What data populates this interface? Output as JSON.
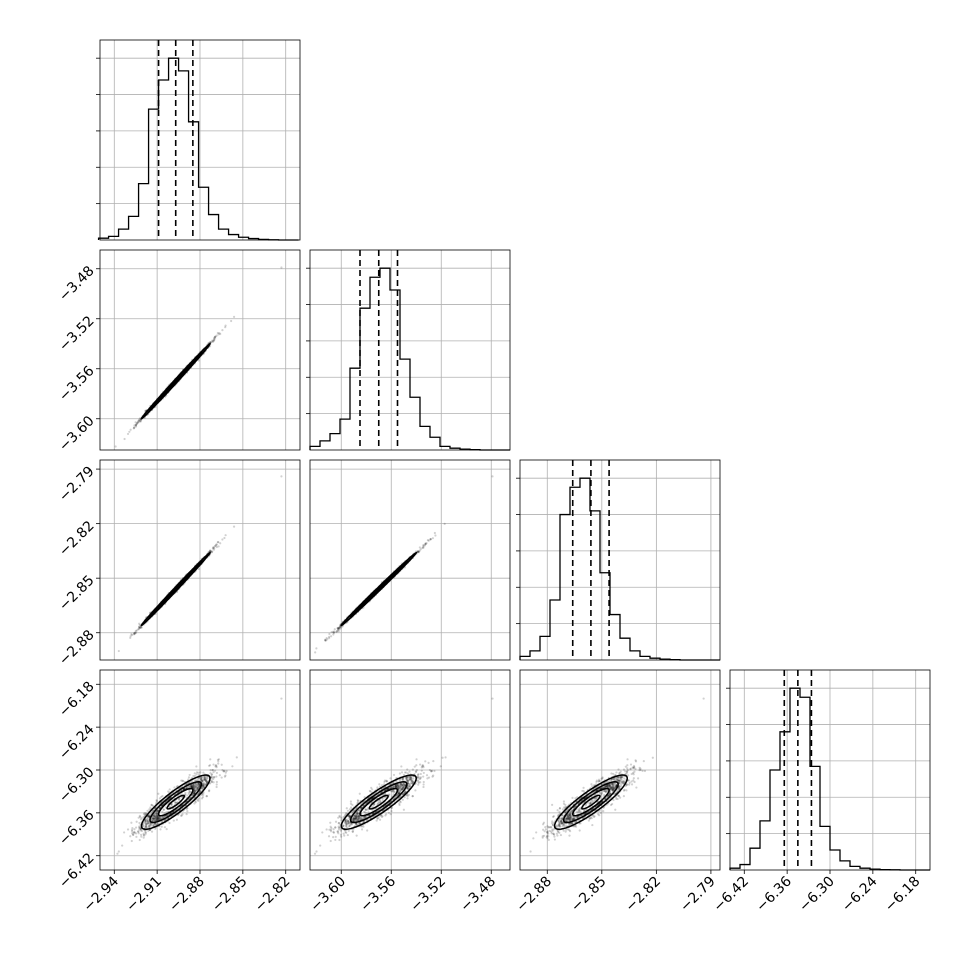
{
  "chart_data": {
    "type": "corner",
    "grid": true,
    "n_params": 4,
    "params": [
      {
        "range": [
          -2.95,
          -2.81
        ],
        "ticks": [
          -2.94,
          -2.91,
          -2.88,
          -2.85,
          -2.82
        ],
        "tick_labels": [
          "−2.94",
          "−2.91",
          "−2.88",
          "−2.85",
          "−2.82"
        ],
        "quantiles": [
          -2.909,
          -2.897,
          -2.885
        ],
        "hist_bins": [
          -2.951,
          -2.944,
          -2.937,
          -2.93,
          -2.923,
          -2.916,
          -2.909,
          -2.902,
          -2.895,
          -2.888,
          -2.881,
          -2.874,
          -2.867,
          -2.86,
          -2.853,
          -2.846,
          -2.839,
          -2.832,
          -2.825,
          -2.818,
          -2.811
        ],
        "hist_counts": [
          0.01,
          0.02,
          0.06,
          0.13,
          0.31,
          0.72,
          0.88,
          1.0,
          0.93,
          0.65,
          0.29,
          0.14,
          0.06,
          0.03,
          0.015,
          0.008,
          0.003,
          0.001,
          0,
          0
        ]
      },
      {
        "range": [
          -3.625,
          -3.465
        ],
        "ticks": [
          -3.6,
          -3.56,
          -3.52,
          -3.48
        ],
        "tick_labels": [
          "−3.60",
          "−3.56",
          "−3.52",
          "−3.48"
        ],
        "quantiles": [
          -3.585,
          -3.57,
          -3.555
        ],
        "hist_bins": [
          -3.625,
          -3.617,
          -3.609,
          -3.601,
          -3.593,
          -3.585,
          -3.577,
          -3.569,
          -3.561,
          -3.553,
          -3.545,
          -3.537,
          -3.529,
          -3.521,
          -3.513,
          -3.505,
          -3.497,
          -3.489,
          -3.481,
          -3.473,
          -3.465
        ],
        "hist_counts": [
          0.02,
          0.05,
          0.09,
          0.17,
          0.45,
          0.78,
          0.95,
          1.0,
          0.88,
          0.5,
          0.29,
          0.13,
          0.07,
          0.02,
          0.01,
          0.005,
          0.002,
          0,
          0,
          0
        ]
      },
      {
        "range": [
          -2.895,
          -2.785
        ],
        "ticks": [
          -2.88,
          -2.85,
          -2.82,
          -2.79
        ],
        "tick_labels": [
          "−2.88",
          "−2.85",
          "−2.82",
          "−2.79"
        ],
        "quantiles": [
          -2.866,
          -2.856,
          -2.846
        ],
        "hist_bins": [
          -2.895,
          -2.8895,
          -2.884,
          -2.8785,
          -2.873,
          -2.8675,
          -2.862,
          -2.8565,
          -2.851,
          -2.8455,
          -2.84,
          -2.8345,
          -2.829,
          -2.8235,
          -2.818,
          -2.8125,
          -2.807,
          -2.8015,
          -2.796,
          -2.7905,
          -2.785
        ],
        "hist_counts": [
          0.02,
          0.05,
          0.13,
          0.33,
          0.8,
          0.95,
          1.0,
          0.82,
          0.48,
          0.25,
          0.12,
          0.05,
          0.02,
          0.01,
          0.005,
          0.002,
          0,
          0,
          0,
          0
        ]
      },
      {
        "range": [
          -6.44,
          -6.16
        ],
        "ticks": [
          -6.42,
          -6.36,
          -6.3,
          -6.24,
          -6.18
        ],
        "tick_labels": [
          "−6.42",
          "−6.36",
          "−6.30",
          "−6.24",
          "−6.18"
        ],
        "quantiles": [
          -6.364,
          -6.345,
          -6.326
        ],
        "hist_bins": [
          -6.44,
          -6.426,
          -6.412,
          -6.398,
          -6.384,
          -6.37,
          -6.356,
          -6.342,
          -6.328,
          -6.314,
          -6.3,
          -6.286,
          -6.272,
          -6.258,
          -6.244,
          -6.23,
          -6.216,
          -6.202,
          -6.188,
          -6.174,
          -6.16
        ],
        "hist_counts": [
          0.01,
          0.03,
          0.12,
          0.27,
          0.55,
          0.76,
          1.0,
          0.95,
          0.57,
          0.24,
          0.11,
          0.05,
          0.02,
          0.01,
          0.005,
          0.002,
          0.001,
          0,
          0,
          0
        ]
      }
    ],
    "pairs": [
      {
        "row": 1,
        "col": 0,
        "corr": 0.998,
        "extreme": [
          -2.823,
          -3.479
        ]
      },
      {
        "row": 2,
        "col": 0,
        "corr": 0.998,
        "extreme": [
          -2.823,
          -2.794
        ]
      },
      {
        "row": 2,
        "col": 1,
        "corr": 0.998,
        "extreme": [
          -3.479,
          -2.794
        ]
      },
      {
        "row": 3,
        "col": 0,
        "corr": 0.88,
        "extreme": [
          -2.823,
          -6.2
        ]
      },
      {
        "row": 3,
        "col": 1,
        "corr": 0.88,
        "extreme": [
          -3.479,
          -6.2
        ]
      },
      {
        "row": 3,
        "col": 2,
        "corr": 0.88,
        "extreme": [
          -2.794,
          -6.2
        ]
      }
    ],
    "contour_levels": [
      "0.5 sigma",
      "1 sigma",
      "1.5 sigma",
      "2 sigma"
    ],
    "contour_fill_colors": [
      "#000000",
      "#3a3a3a",
      "#8c8c8c",
      "#d9d9d9"
    ],
    "line_color": "#000000",
    "grid_color": "#b0b0b0"
  }
}
